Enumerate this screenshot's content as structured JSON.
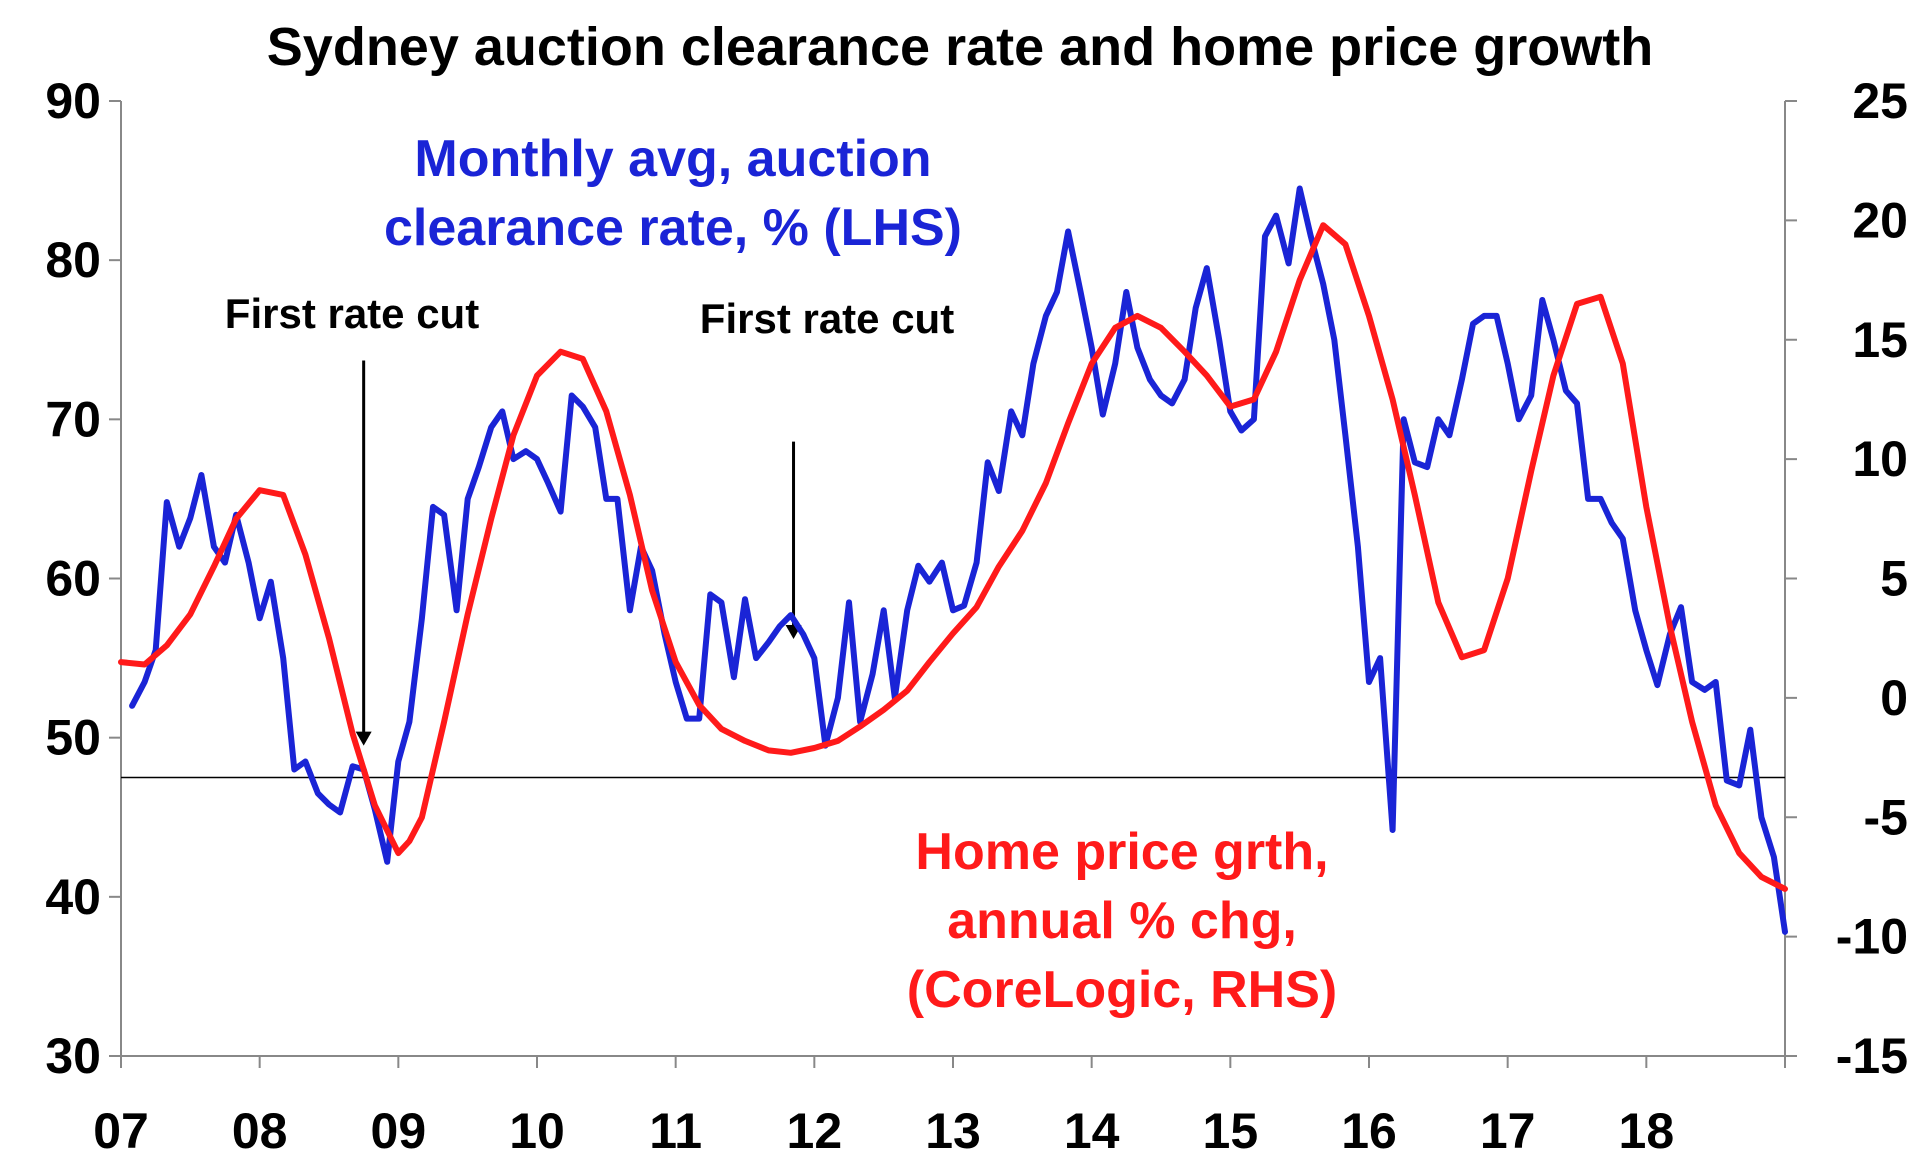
{
  "chart_data": {
    "type": "line",
    "title": "Sydney auction clearance rate and home price growth",
    "xlabel": "",
    "ylabel": "",
    "x_ticks": [
      "07",
      "08",
      "09",
      "10",
      "11",
      "12",
      "13",
      "14",
      "15",
      "16",
      "17",
      "18"
    ],
    "xlim": [
      2007,
      2019
    ],
    "left_axis": {
      "ylim": [
        30,
        90
      ],
      "ticks": [
        "90",
        "80",
        "70",
        "60",
        "50",
        "40",
        "30"
      ]
    },
    "right_axis": {
      "ylim": [
        -15,
        25
      ],
      "ticks": [
        "25",
        "20",
        "15",
        "10",
        "5",
        "0",
        "-5",
        "-10",
        "-15"
      ]
    },
    "reference_line_left_value": 47.5,
    "annotations": [
      {
        "id": "cut1",
        "text": "First rate cut",
        "arrow_x": 2008.75,
        "arrow_y_from": 73.7,
        "arrow_y_to": 49.5
      },
      {
        "id": "cut2",
        "text": "First rate cut",
        "arrow_x": 2011.85,
        "arrow_y_from": 68.6,
        "arrow_y_to": 56.2
      }
    ],
    "series": [
      {
        "name": "Monthly avg, auction clearance rate, % (LHS)",
        "label_lines": [
          "Monthly avg, auction",
          "clearance rate, % (LHS)"
        ],
        "axis": "left",
        "color": "#1a24d6",
        "points": [
          [
            2007.08,
            52.0
          ],
          [
            2007.17,
            53.5
          ],
          [
            2007.25,
            55.5
          ],
          [
            2007.33,
            64.8
          ],
          [
            2007.42,
            62.0
          ],
          [
            2007.5,
            63.8
          ],
          [
            2007.58,
            66.5
          ],
          [
            2007.67,
            62.0
          ],
          [
            2007.75,
            61.0
          ],
          [
            2007.83,
            64.0
          ],
          [
            2007.92,
            61.0
          ],
          [
            2008.0,
            57.5
          ],
          [
            2008.08,
            59.8
          ],
          [
            2008.17,
            55.0
          ],
          [
            2008.25,
            48.0
          ],
          [
            2008.33,
            48.5
          ],
          [
            2008.42,
            46.5
          ],
          [
            2008.5,
            45.8
          ],
          [
            2008.58,
            45.3
          ],
          [
            2008.67,
            48.2
          ],
          [
            2008.75,
            48.0
          ],
          [
            2008.83,
            45.5
          ],
          [
            2008.92,
            42.2
          ],
          [
            2009.0,
            48.5
          ],
          [
            2009.08,
            51.0
          ],
          [
            2009.17,
            57.5
          ],
          [
            2009.25,
            64.5
          ],
          [
            2009.33,
            64.0
          ],
          [
            2009.42,
            58.0
          ],
          [
            2009.5,
            65.0
          ],
          [
            2009.58,
            67.0
          ],
          [
            2009.67,
            69.5
          ],
          [
            2009.75,
            70.5
          ],
          [
            2009.83,
            67.5
          ],
          [
            2009.92,
            68.0
          ],
          [
            2010.0,
            67.5
          ],
          [
            2010.08,
            66.0
          ],
          [
            2010.17,
            64.2
          ],
          [
            2010.25,
            71.5
          ],
          [
            2010.33,
            70.8
          ],
          [
            2010.42,
            69.5
          ],
          [
            2010.5,
            65.0
          ],
          [
            2010.58,
            65.0
          ],
          [
            2010.67,
            58.0
          ],
          [
            2010.75,
            62.0
          ],
          [
            2010.83,
            60.5
          ],
          [
            2010.92,
            56.5
          ],
          [
            2011.0,
            53.5
          ],
          [
            2011.08,
            51.2
          ],
          [
            2011.17,
            51.2
          ],
          [
            2011.25,
            59.0
          ],
          [
            2011.33,
            58.5
          ],
          [
            2011.42,
            53.8
          ],
          [
            2011.5,
            58.7
          ],
          [
            2011.58,
            55.0
          ],
          [
            2011.67,
            56.0
          ],
          [
            2011.75,
            57.0
          ],
          [
            2011.83,
            57.7
          ],
          [
            2011.92,
            56.5
          ],
          [
            2012.0,
            55.0
          ],
          [
            2012.08,
            49.5
          ],
          [
            2012.17,
            52.5
          ],
          [
            2012.25,
            58.5
          ],
          [
            2012.33,
            51.0
          ],
          [
            2012.42,
            54.0
          ],
          [
            2012.5,
            58.0
          ],
          [
            2012.58,
            52.5
          ],
          [
            2012.67,
            58.0
          ],
          [
            2012.75,
            60.8
          ],
          [
            2012.83,
            59.8
          ],
          [
            2012.92,
            61.0
          ],
          [
            2013.0,
            58.0
          ],
          [
            2013.08,
            58.3
          ],
          [
            2013.17,
            61.0
          ],
          [
            2013.25,
            67.3
          ],
          [
            2013.33,
            65.5
          ],
          [
            2013.42,
            70.5
          ],
          [
            2013.5,
            69.0
          ],
          [
            2013.58,
            73.5
          ],
          [
            2013.67,
            76.5
          ],
          [
            2013.75,
            78.0
          ],
          [
            2013.83,
            81.8
          ],
          [
            2013.92,
            78.0
          ],
          [
            2014.0,
            74.5
          ],
          [
            2014.08,
            70.3
          ],
          [
            2014.17,
            73.5
          ],
          [
            2014.25,
            78.0
          ],
          [
            2014.33,
            74.5
          ],
          [
            2014.42,
            72.5
          ],
          [
            2014.5,
            71.5
          ],
          [
            2014.58,
            71.0
          ],
          [
            2014.67,
            72.5
          ],
          [
            2014.75,
            77.0
          ],
          [
            2014.83,
            79.5
          ],
          [
            2014.92,
            75.0
          ],
          [
            2015.0,
            70.5
          ],
          [
            2015.08,
            69.3
          ],
          [
            2015.17,
            70.0
          ],
          [
            2015.25,
            81.5
          ],
          [
            2015.33,
            82.8
          ],
          [
            2015.42,
            79.8
          ],
          [
            2015.5,
            84.5
          ],
          [
            2015.58,
            81.5
          ],
          [
            2015.67,
            78.5
          ],
          [
            2015.75,
            75.0
          ],
          [
            2015.83,
            69.0
          ],
          [
            2015.92,
            62.0
          ],
          [
            2016.0,
            53.5
          ],
          [
            2016.08,
            55.0
          ],
          [
            2016.17,
            44.2
          ],
          [
            2016.25,
            70.0
          ],
          [
            2016.33,
            67.3
          ],
          [
            2016.42,
            67.0
          ],
          [
            2016.5,
            70.0
          ],
          [
            2016.58,
            69.0
          ],
          [
            2016.67,
            72.5
          ],
          [
            2016.75,
            76.0
          ],
          [
            2016.83,
            76.5
          ],
          [
            2016.92,
            76.5
          ],
          [
            2017.0,
            73.5
          ],
          [
            2017.08,
            70.0
          ],
          [
            2017.17,
            71.5
          ],
          [
            2017.25,
            77.5
          ],
          [
            2017.33,
            75.0
          ],
          [
            2017.42,
            71.8
          ],
          [
            2017.5,
            71.0
          ],
          [
            2017.58,
            65.0
          ],
          [
            2017.67,
            65.0
          ],
          [
            2017.75,
            63.5
          ],
          [
            2017.83,
            62.5
          ],
          [
            2017.92,
            58.0
          ],
          [
            2018.0,
            55.5
          ],
          [
            2018.08,
            53.3
          ],
          [
            2018.17,
            56.5
          ],
          [
            2018.25,
            58.2
          ],
          [
            2018.33,
            53.5
          ],
          [
            2018.42,
            53.0
          ],
          [
            2018.5,
            53.5
          ],
          [
            2018.58,
            47.3
          ],
          [
            2018.67,
            47.0
          ],
          [
            2018.75,
            50.5
          ],
          [
            2018.83,
            45.0
          ],
          [
            2018.92,
            42.5
          ],
          [
            2019.0,
            37.8
          ]
        ]
      },
      {
        "name": "Home price grth, annual % chg, (CoreLogic, RHS)",
        "label_lines": [
          "Home price grth,",
          "annual % chg,",
          "(CoreLogic, RHS)"
        ],
        "axis": "right",
        "color": "#ff1a1a",
        "points": [
          [
            2007.0,
            1.5
          ],
          [
            2007.17,
            1.4
          ],
          [
            2007.33,
            2.2
          ],
          [
            2007.5,
            3.5
          ],
          [
            2007.67,
            5.5
          ],
          [
            2007.83,
            7.5
          ],
          [
            2008.0,
            8.7
          ],
          [
            2008.17,
            8.5
          ],
          [
            2008.33,
            6.0
          ],
          [
            2008.5,
            2.5
          ],
          [
            2008.67,
            -1.5
          ],
          [
            2008.83,
            -4.5
          ],
          [
            2009.0,
            -6.5
          ],
          [
            2009.08,
            -6.0
          ],
          [
            2009.17,
            -5.0
          ],
          [
            2009.33,
            -1.0
          ],
          [
            2009.5,
            3.5
          ],
          [
            2009.67,
            7.5
          ],
          [
            2009.83,
            11.0
          ],
          [
            2010.0,
            13.5
          ],
          [
            2010.17,
            14.5
          ],
          [
            2010.33,
            14.2
          ],
          [
            2010.5,
            12.0
          ],
          [
            2010.67,
            8.5
          ],
          [
            2010.83,
            4.5
          ],
          [
            2011.0,
            1.5
          ],
          [
            2011.17,
            -0.3
          ],
          [
            2011.33,
            -1.3
          ],
          [
            2011.5,
            -1.8
          ],
          [
            2011.67,
            -2.2
          ],
          [
            2011.83,
            -2.3
          ],
          [
            2012.0,
            -2.1
          ],
          [
            2012.17,
            -1.8
          ],
          [
            2012.33,
            -1.2
          ],
          [
            2012.5,
            -0.5
          ],
          [
            2012.67,
            0.3
          ],
          [
            2012.83,
            1.5
          ],
          [
            2013.0,
            2.7
          ],
          [
            2013.17,
            3.8
          ],
          [
            2013.33,
            5.5
          ],
          [
            2013.5,
            7.0
          ],
          [
            2013.67,
            9.0
          ],
          [
            2013.83,
            11.5
          ],
          [
            2014.0,
            14.0
          ],
          [
            2014.17,
            15.5
          ],
          [
            2014.33,
            16.0
          ],
          [
            2014.5,
            15.5
          ],
          [
            2014.67,
            14.5
          ],
          [
            2014.83,
            13.5
          ],
          [
            2015.0,
            12.2
          ],
          [
            2015.17,
            12.5
          ],
          [
            2015.33,
            14.5
          ],
          [
            2015.5,
            17.5
          ],
          [
            2015.67,
            19.8
          ],
          [
            2015.83,
            19.0
          ],
          [
            2016.0,
            16.0
          ],
          [
            2016.17,
            12.5
          ],
          [
            2016.33,
            8.5
          ],
          [
            2016.5,
            4.0
          ],
          [
            2016.67,
            1.7
          ],
          [
            2016.83,
            2.0
          ],
          [
            2017.0,
            5.0
          ],
          [
            2017.17,
            9.5
          ],
          [
            2017.33,
            13.5
          ],
          [
            2017.5,
            16.5
          ],
          [
            2017.67,
            16.8
          ],
          [
            2017.83,
            14.0
          ],
          [
            2018.0,
            8.0
          ],
          [
            2018.17,
            3.0
          ],
          [
            2018.33,
            -1.0
          ],
          [
            2018.5,
            -4.5
          ],
          [
            2018.67,
            -6.5
          ],
          [
            2018.83,
            -7.5
          ],
          [
            2019.0,
            -8.0
          ]
        ]
      }
    ]
  }
}
